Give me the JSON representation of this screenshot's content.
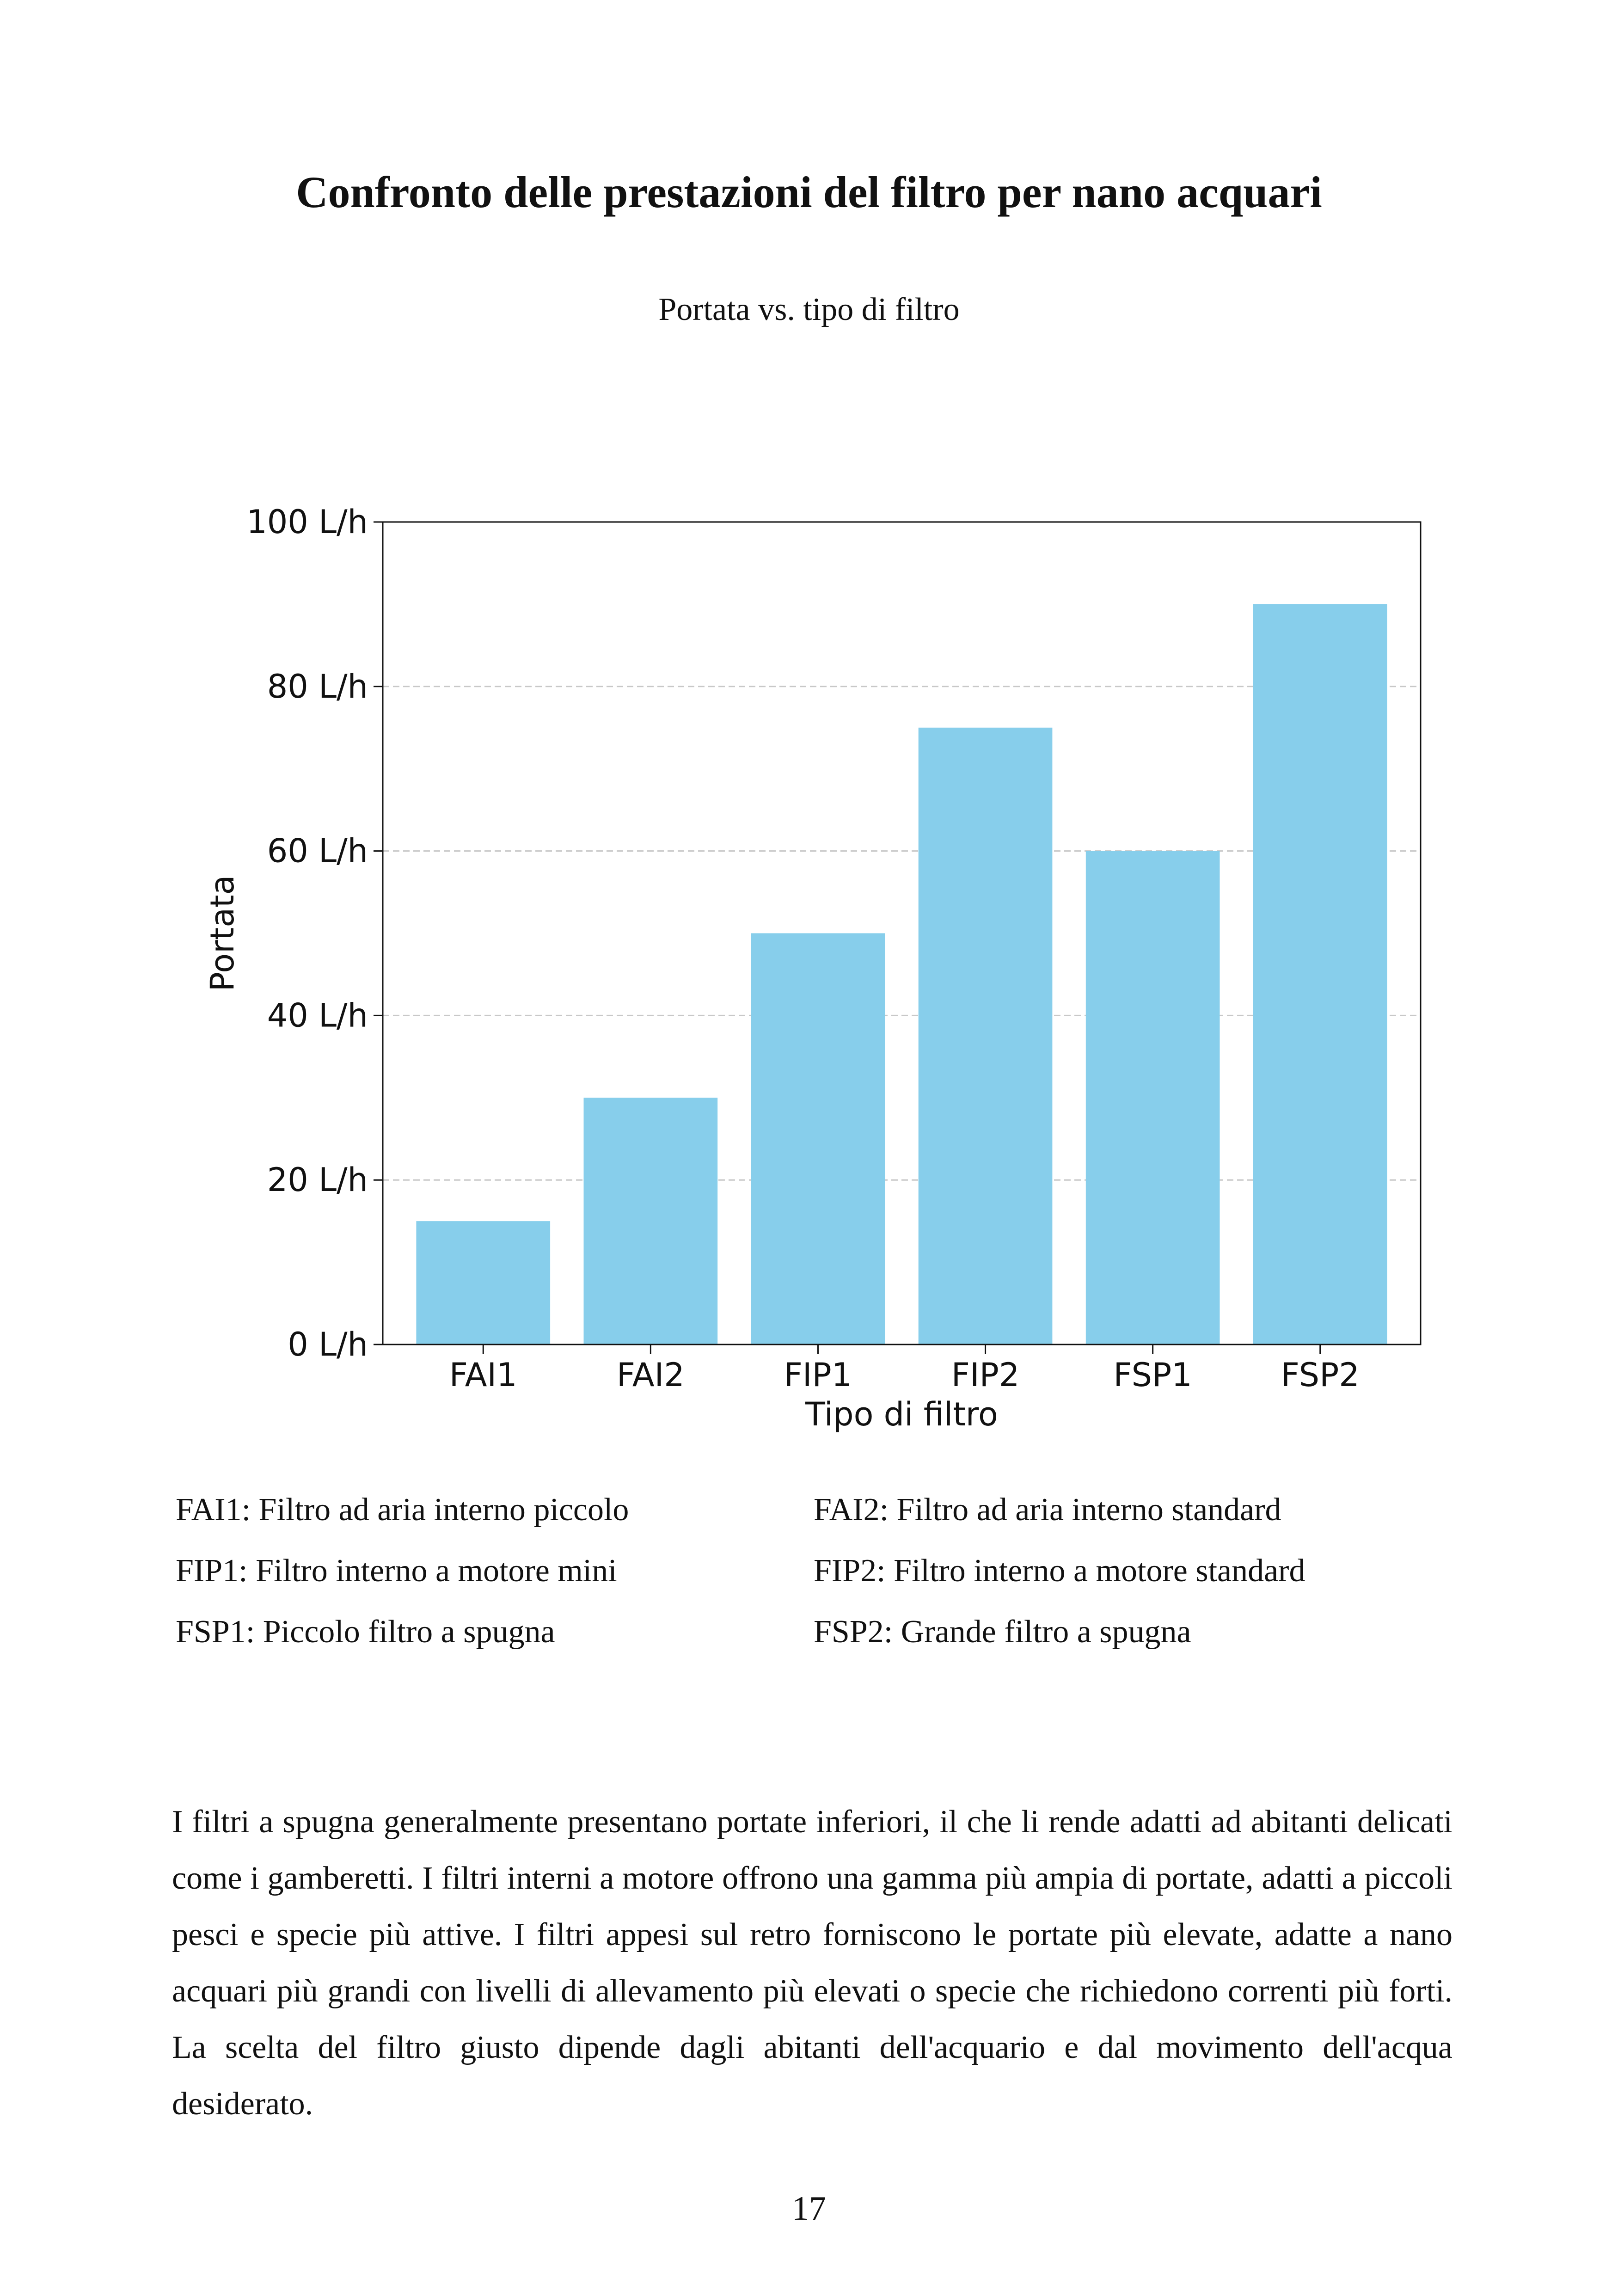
{
  "page": {
    "title": "Confronto delle prestazioni del filtro per nano acquari",
    "subtitle": "Portata vs. tipo di filtro",
    "body": "I filtri a spugna generalmente presentano portate inferiori, il che li rende adatti ad abitanti delicati come i gamberetti. I filtri interni a motore offrono una gamma più ampia di portate, adatti a piccoli pesci e specie più attive. I filtri appesi sul retro forniscono le portate più elevate, adatte a nano acquari più grandi con livelli di allevamento più elevati o specie che richiedono correnti più forti. La scelta del filtro giusto dipende dagli abitanti dell'acquario e dal movimento dell'acqua desiderato.",
    "page_number": "17"
  },
  "legend": [
    "FAI1: Filtro ad aria interno piccolo",
    "FAI2: Filtro ad aria interno standard",
    "FIP1: Filtro interno a motore mini",
    "FIP2: Filtro interno a motore standard",
    "FSP1: Piccolo filtro a spugna",
    "FSP2: Grande filtro a spugna"
  ],
  "chart_data": {
    "type": "bar",
    "categories": [
      "FAI1",
      "FAI2",
      "FIP1",
      "FIP2",
      "FSP1",
      "FSP2"
    ],
    "values": [
      15,
      30,
      50,
      75,
      60,
      90
    ],
    "xlabel": "Tipo di filtro",
    "ylabel": "Portata",
    "ylim": [
      0,
      100
    ],
    "yticks": [
      0,
      20,
      40,
      60,
      80,
      100
    ],
    "ytick_labels": [
      "0 L/h",
      "20 L/h",
      "40 L/h",
      "60 L/h",
      "80 L/h",
      "100 L/h"
    ],
    "bar_color": "#87CEEB",
    "grid": "y-dashed"
  }
}
